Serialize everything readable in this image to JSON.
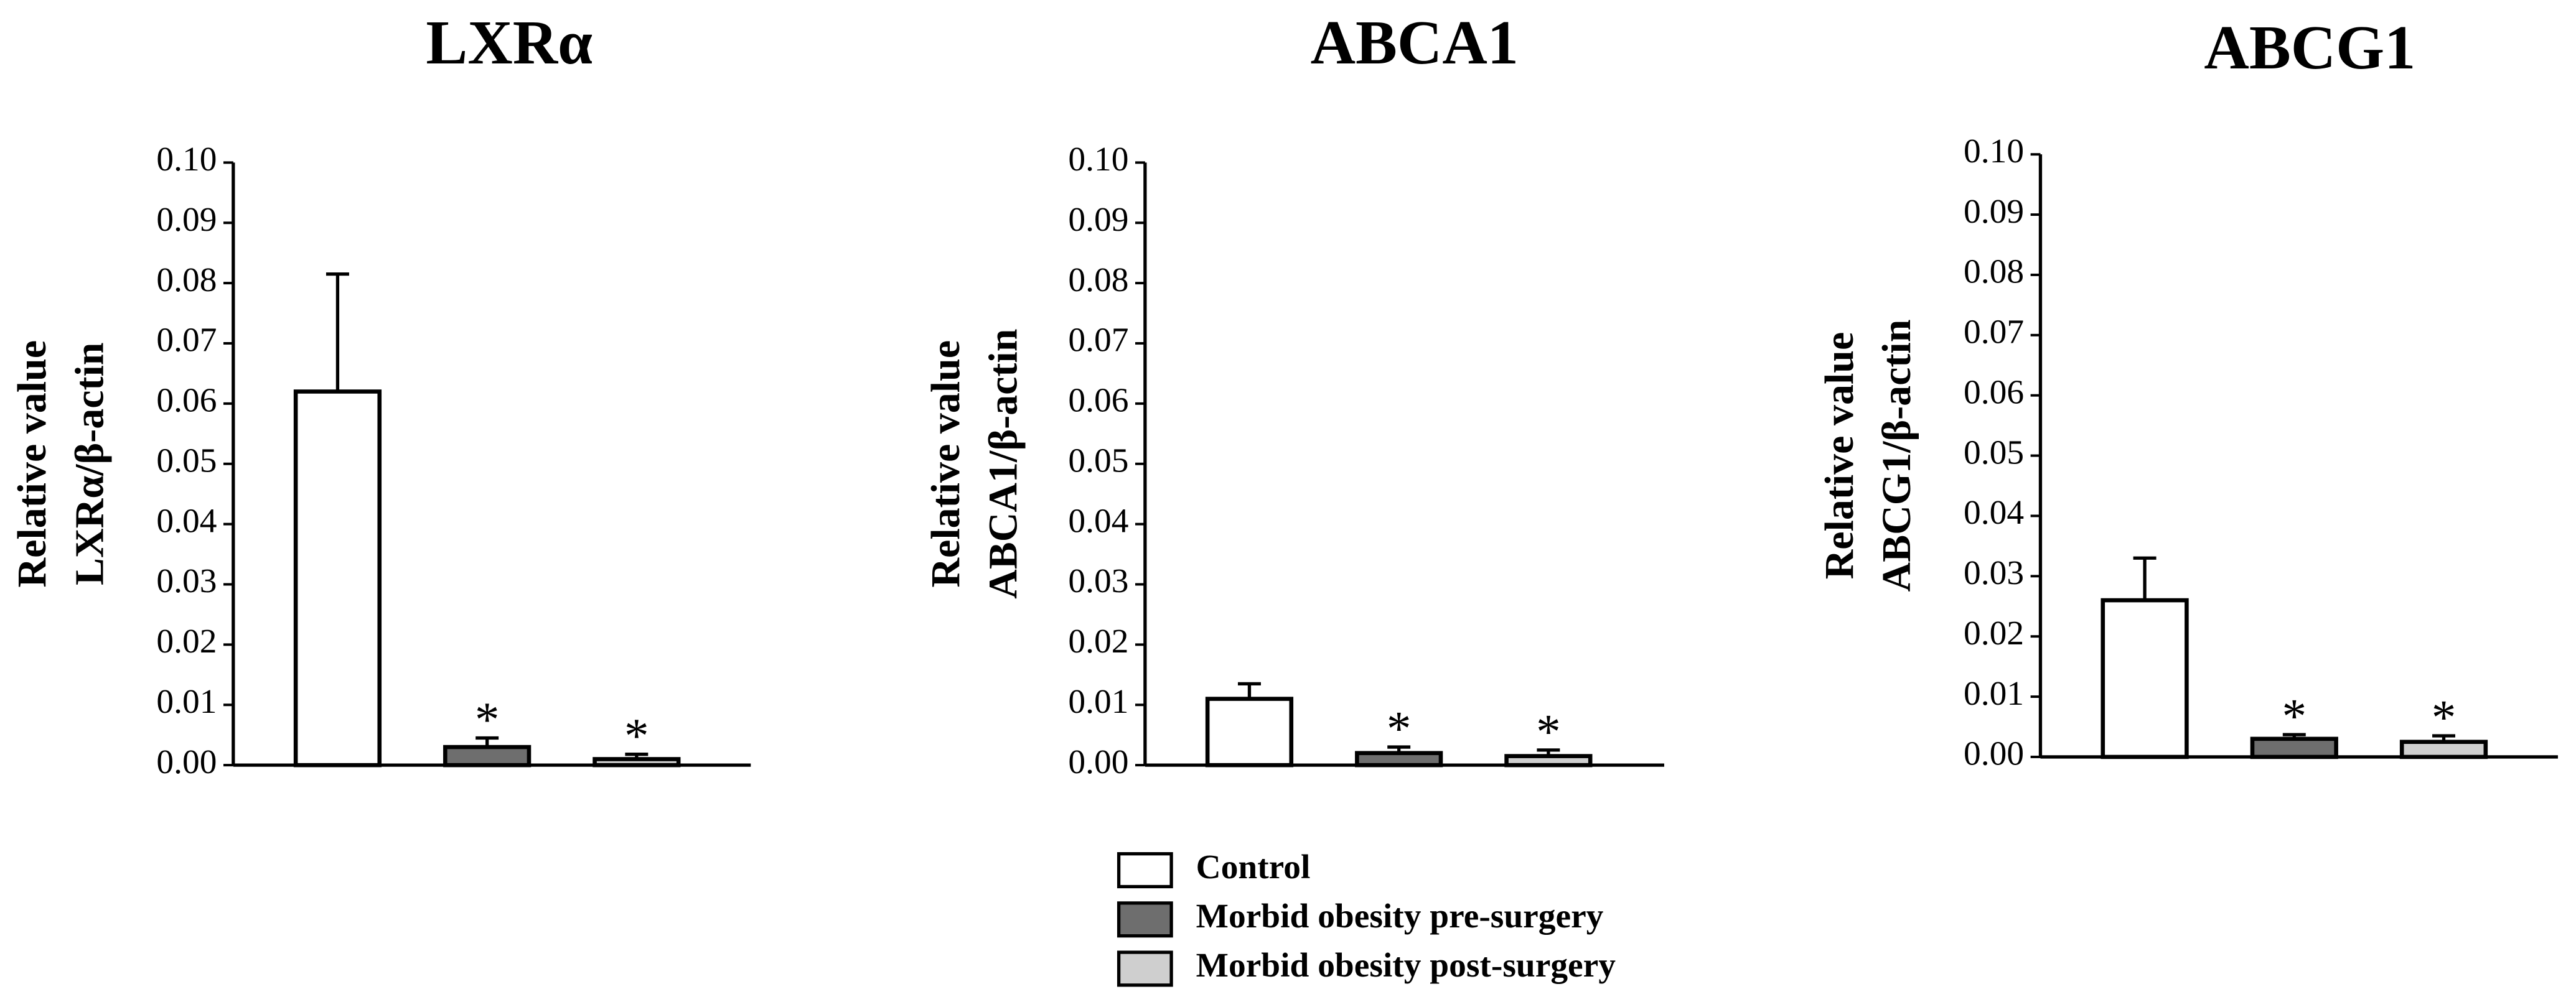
{
  "chart_data": [
    {
      "type": "bar",
      "title": "LXRα",
      "ylabel": [
        "Relative value",
        "LXRα/β-actin"
      ],
      "values": [
        0.062,
        0.003,
        0.001
      ],
      "errors": [
        0.0195,
        0.0015,
        0.0008
      ],
      "annotations": [
        null,
        "*",
        "*"
      ],
      "ylim": [
        0,
        0.1
      ],
      "yticks": [
        {
          "value": 0,
          "label": "0.00"
        },
        0.01,
        0.02,
        0.03,
        0.04,
        0.05,
        0.06,
        0.07,
        0.08,
        0.09,
        {
          "value": 0.1,
          "label": "0.10"
        }
      ]
    },
    {
      "type": "bar",
      "title": "ABCA1",
      "ylabel": [
        "Relative value",
        "ABCA1/β-actin"
      ],
      "values": [
        0.011,
        0.002,
        0.0015
      ],
      "errors": [
        0.0025,
        0.001,
        0.001
      ],
      "annotations": [
        null,
        "*",
        "*"
      ],
      "ylim": [
        0,
        0.1
      ],
      "yticks": [
        {
          "value": 0,
          "label": "0.00"
        },
        0.01,
        0.02,
        0.03,
        0.04,
        0.05,
        0.06,
        0.07,
        0.08,
        0.09,
        {
          "value": 0.1,
          "label": "0.10"
        }
      ]
    },
    {
      "type": "bar",
      "title": "ABCG1",
      "ylabel": [
        "Relative value",
        "ABCG1/β-actin"
      ],
      "values": [
        0.026,
        0.003,
        0.0025
      ],
      "errors": [
        0.007,
        0.0007,
        0.001
      ],
      "annotations": [
        null,
        "*",
        "*"
      ],
      "ylim": [
        0,
        0.1
      ],
      "yticks": [
        {
          "value": 0,
          "label": "0.00"
        },
        0.01,
        0.02,
        0.03,
        0.04,
        0.05,
        0.06,
        0.07,
        0.08,
        0.09,
        {
          "value": 0.1,
          "label": "0.10"
        }
      ]
    }
  ],
  "legend": {
    "entries": [
      {
        "name": "Control",
        "color": "#ffffff"
      },
      {
        "name": "Morbid obesity pre-surgery",
        "color": "#6e6e6e"
      },
      {
        "name": "Morbid obesity post-surgery",
        "color": "#cfcfcf"
      }
    ]
  }
}
